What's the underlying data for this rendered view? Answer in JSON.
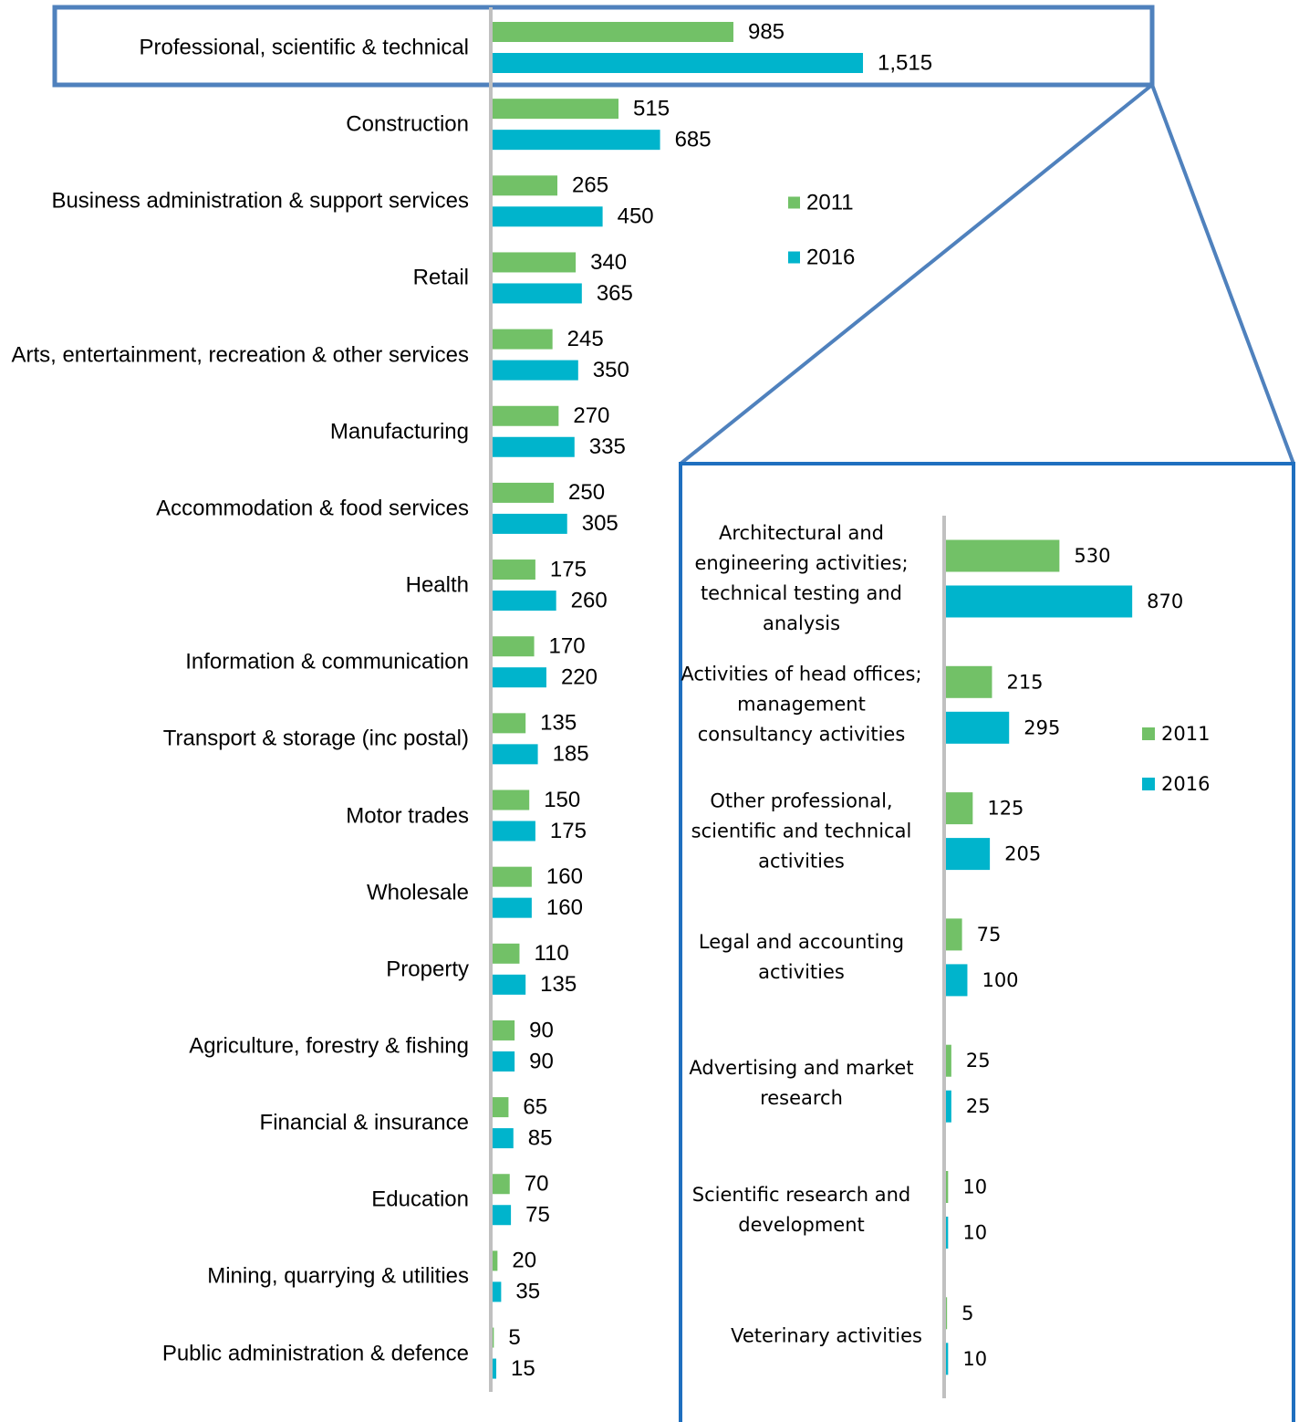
{
  "chart_data": [
    {
      "type": "bar",
      "orientation": "horizontal",
      "legend": "right",
      "xlim": [
        0,
        2500
      ],
      "categories": [
        "Professional, scientific & technical",
        "Construction",
        "Business administration & support services",
        "Retail",
        "Arts, entertainment, recreation & other services",
        "Manufacturing",
        "Accommodation & food services",
        "Health",
        "Information & communication",
        "Transport & storage (inc postal)",
        "Motor trades",
        "Wholesale",
        "Property",
        "Agriculture, forestry & fishing",
        "Financial & insurance",
        "Education",
        "Mining, quarrying & utilities",
        "Public administration & defence"
      ],
      "series": [
        {
          "name": "2011",
          "color": "#72c167",
          "values": [
            985,
            515,
            265,
            340,
            245,
            270,
            250,
            175,
            170,
            135,
            150,
            160,
            110,
            90,
            65,
            70,
            20,
            5
          ]
        },
        {
          "name": "2016",
          "color": "#00b4cc",
          "values": [
            1515,
            685,
            450,
            365,
            350,
            335,
            305,
            260,
            220,
            185,
            175,
            160,
            135,
            90,
            85,
            75,
            35,
            15
          ],
          "value_labels": [
            "1,515",
            "685",
            "450",
            "365",
            "350",
            "335",
            "305",
            "260",
            "220",
            "185",
            "175",
            "160",
            "135",
            "90",
            "85",
            "75",
            "35",
            "15"
          ]
        }
      ]
    },
    {
      "type": "bar",
      "orientation": "horizontal",
      "legend": "right",
      "xlim": [
        0,
        1500
      ],
      "categories": [
        "Architectural and engineering activities; technical testing and analysis",
        "Activities of head offices; management consultancy activities",
        "Other professional, scientific and technical activities",
        "Legal and accounting activities",
        "Advertising and market research",
        "Scientific research and development",
        "Veterinary activities"
      ],
      "series": [
        {
          "name": "2011",
          "color": "#72c167",
          "values": [
            530,
            215,
            125,
            75,
            25,
            10,
            5
          ]
        },
        {
          "name": "2016",
          "color": "#00b4cc",
          "values": [
            870,
            295,
            205,
            100,
            25,
            10,
            10
          ]
        }
      ]
    }
  ]
}
